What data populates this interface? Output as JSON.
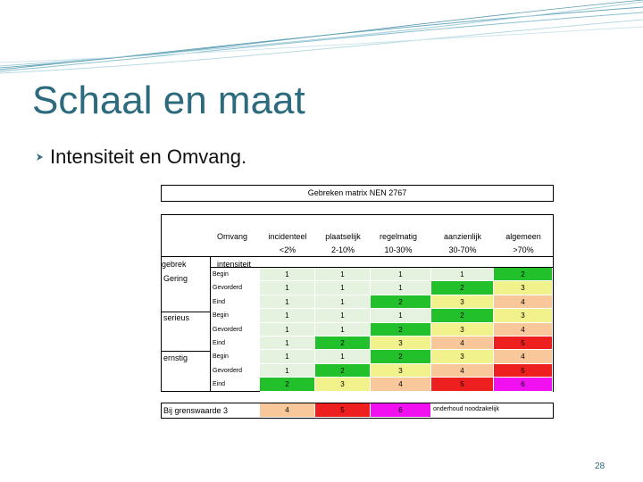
{
  "slide": {
    "title": "Schaal en maat",
    "bullet": "Intensiteit en Omvang.",
    "page_number": "28"
  },
  "matrix": {
    "title": "Gebreken matrix NEN 2767",
    "omvang_label": "Omvang",
    "columns": [
      {
        "name": "incidenteel",
        "range": "<2%"
      },
      {
        "name": "plaatselijk",
        "range": "2-10%"
      },
      {
        "name": "regelmatig",
        "range": "10-30%"
      },
      {
        "name": "aanzienlijk",
        "range": "30-70%"
      },
      {
        "name": "algemeen",
        "range": ">70%"
      }
    ],
    "gebrek_label": "gebrek",
    "intensiteit_label": "intensiteit",
    "groups": [
      "Gering",
      "serieus",
      "ernstig"
    ],
    "stages": [
      "Begin",
      "Gevorderd",
      "Eind"
    ],
    "rows": [
      {
        "values": [
          "1",
          "1",
          "1",
          "1",
          "2"
        ]
      },
      {
        "values": [
          "1",
          "1",
          "1",
          "2",
          "3"
        ]
      },
      {
        "values": [
          "1",
          "1",
          "2",
          "3",
          "4"
        ]
      },
      {
        "values": [
          "1",
          "1",
          "1",
          "2",
          "3"
        ]
      },
      {
        "values": [
          "1",
          "1",
          "2",
          "3",
          "4"
        ]
      },
      {
        "values": [
          "1",
          "2",
          "3",
          "4",
          "5"
        ]
      },
      {
        "values": [
          "1",
          "1",
          "2",
          "3",
          "4"
        ]
      },
      {
        "values": [
          "1",
          "2",
          "3",
          "4",
          "5"
        ]
      },
      {
        "values": [
          "2",
          "3",
          "4",
          "5",
          "6"
        ]
      }
    ],
    "colors": {
      "1": "#e6f2e0",
      "2": "#22c02a",
      "3": "#f2f28c",
      "4": "#f8c79a",
      "5": "#ee1f1f",
      "6": "#f010f0"
    },
    "bottom": {
      "label": "Bij grenswaarde 3",
      "values": [
        "4",
        "5",
        "6"
      ],
      "note": "onderhoud noodzakelijk"
    }
  }
}
